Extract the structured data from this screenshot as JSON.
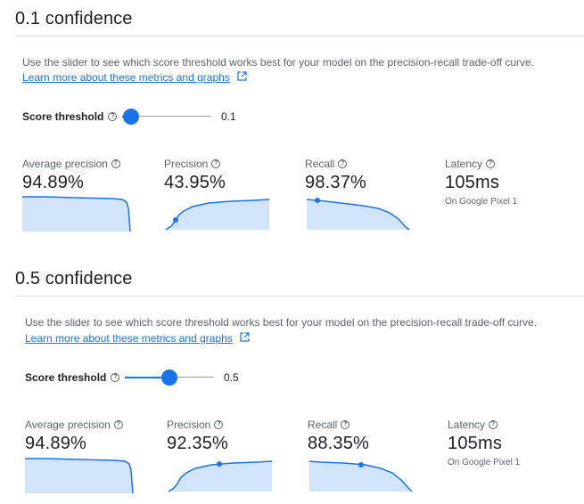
{
  "sections": [
    {
      "title": "0.1 confidence",
      "description": "Use the slider to see which score threshold works best for your model on the precision-recall trade-off curve.",
      "learn_more": "Learn more about these metrics and graphs",
      "threshold_label": "Score threshold",
      "threshold_value": "0.1",
      "slider_fraction": 0.1,
      "metrics": {
        "average_precision": {
          "label": "Average precision",
          "value": "94.89%"
        },
        "precision": {
          "label": "Precision",
          "value": "43.95%"
        },
        "recall": {
          "label": "Recall",
          "value": "98.37%"
        },
        "latency": {
          "label": "Latency",
          "value": "105ms",
          "sub": "On Google Pixel 1"
        }
      }
    },
    {
      "title": "0.5 confidence",
      "description": "Use the slider to see which score threshold works best for your model on the precision-recall trade-off curve.",
      "learn_more": "Learn more about these metrics and graphs",
      "threshold_label": "Score threshold",
      "threshold_value": "0.5",
      "slider_fraction": 0.5,
      "metrics": {
        "average_precision": {
          "label": "Average precision",
          "value": "94.89%"
        },
        "precision": {
          "label": "Precision",
          "value": "92.35%"
        },
        "recall": {
          "label": "Recall",
          "value": "88.35%"
        },
        "latency": {
          "label": "Latency",
          "value": "105ms",
          "sub": "On Google Pixel 1"
        }
      }
    }
  ],
  "colors": {
    "accent": "#1a73e8",
    "chart_fill": "#d2e3fc",
    "text": "#202124",
    "muted": "#5f6368"
  },
  "icons": {
    "help": "help-circle-icon",
    "external": "open-in-new-icon"
  }
}
